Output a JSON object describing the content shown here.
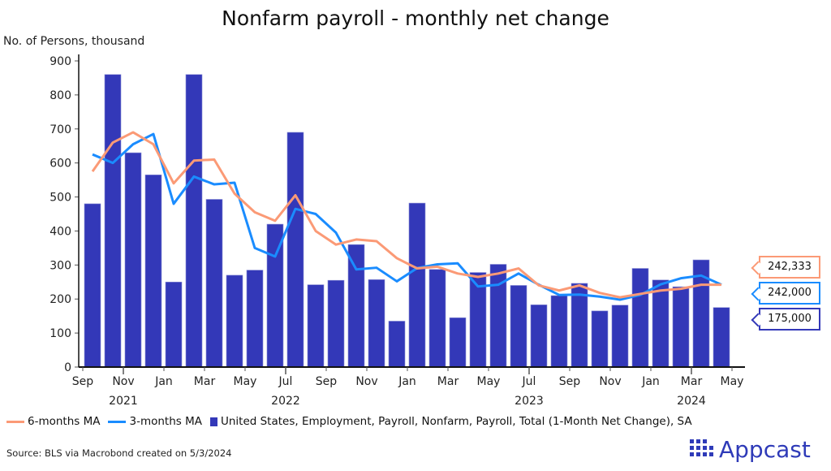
{
  "chart_data": {
    "type": "bar",
    "title": "Nonfarm payroll - monthly net change",
    "ylabel": "No. of Persons, thousand",
    "ylim": [
      0,
      900
    ],
    "yticks": [
      0,
      100,
      200,
      300,
      400,
      500,
      600,
      700,
      800,
      900
    ],
    "xtick_labels": [
      "Sep",
      "Nov",
      "Jan",
      "Mar",
      "May",
      "Jul",
      "Sep",
      "Nov",
      "Jan",
      "Mar",
      "May",
      "Jul",
      "Sep",
      "Nov",
      "Jan",
      "Mar",
      "May"
    ],
    "year_labels": [
      {
        "label": "2021",
        "month_index": 2
      },
      {
        "label": "2022",
        "month_index": 10
      },
      {
        "label": "2023",
        "month_index": 22
      },
      {
        "label": "2024",
        "month_index": 30
      }
    ],
    "months": [
      "2021-09",
      "2021-10",
      "2021-11",
      "2021-12",
      "2022-01",
      "2022-02",
      "2022-03",
      "2022-04",
      "2022-05",
      "2022-06",
      "2022-07",
      "2022-08",
      "2022-09",
      "2022-10",
      "2022-11",
      "2022-12",
      "2023-01",
      "2023-02",
      "2023-03",
      "2023-04",
      "2023-05",
      "2023-06",
      "2023-07",
      "2023-08",
      "2023-09",
      "2023-10",
      "2023-11",
      "2023-12",
      "2024-01",
      "2024-02",
      "2024-03",
      "2024-04"
    ],
    "series": [
      {
        "name": "6-months MA",
        "type": "line",
        "color": "#fb9a76",
        "values": [
          575,
          660,
          690,
          655,
          540,
          607,
          610,
          510,
          455,
          430,
          505,
          400,
          360,
          375,
          370,
          320,
          290,
          295,
          275,
          265,
          275,
          290,
          240,
          225,
          240,
          218,
          205,
          215,
          225,
          230,
          242,
          242
        ]
      },
      {
        "name": "3-months MA",
        "type": "line",
        "color": "#1a8cff",
        "values": [
          625,
          600,
          655,
          685,
          480,
          560,
          537,
          542,
          350,
          325,
          465,
          450,
          395,
          287,
          292,
          252,
          291,
          302,
          305,
          237,
          242,
          275,
          242,
          212,
          213,
          207,
          198,
          212,
          243,
          261,
          269,
          242
        ]
      },
      {
        "name": "United States, Employment, Payroll, Nonfarm, Payroll, Total (1-Month Net Change), SA",
        "type": "bar",
        "color": "#3338b8",
        "values": [
          480,
          860,
          630,
          565,
          250,
          860,
          493,
          270,
          285,
          420,
          690,
          242,
          255,
          360,
          257,
          135,
          482,
          287,
          145,
          278,
          302,
          240,
          183,
          210,
          246,
          165,
          182,
          290,
          256,
          236,
          315,
          175
        ]
      }
    ],
    "callouts": [
      {
        "label": "242,333",
        "color": "#fb9a76"
      },
      {
        "label": "242,000",
        "color": "#1a8cff"
      },
      {
        "label": "175,000",
        "color": "#3338b8"
      }
    ]
  },
  "source": "Source: BLS via Macrobond created on 5/3/2024",
  "brand": "Appcast"
}
